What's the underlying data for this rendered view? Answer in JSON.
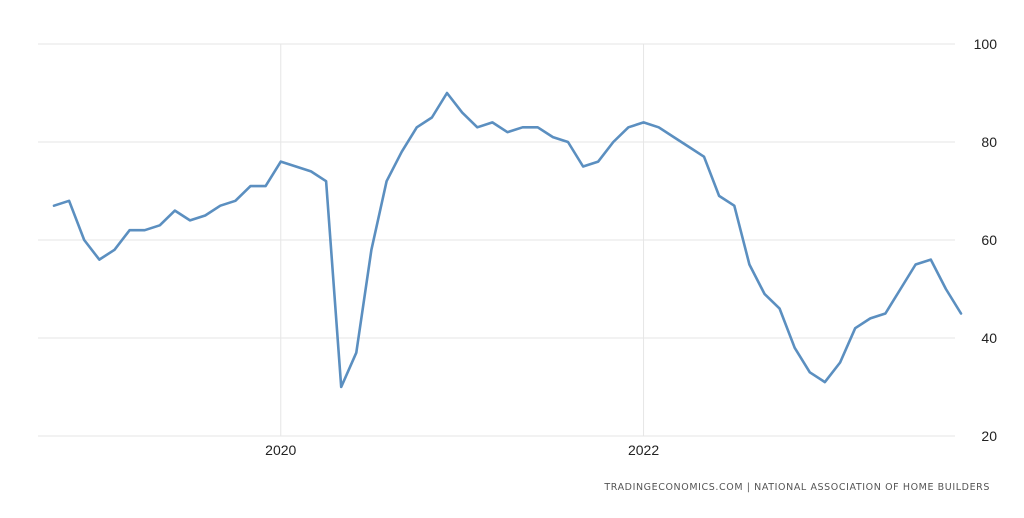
{
  "source_text": "TRADINGECONOMICS.COM | NATIONAL ASSOCIATION OF HOME BUILDERS",
  "colors": {
    "series": "#5b8fc0",
    "grid": "#e6e6e6",
    "text": "#222222"
  },
  "chart_data": {
    "type": "line",
    "title": "",
    "xlabel": "",
    "ylabel": "",
    "ylim": [
      20,
      100
    ],
    "yticks": [
      "20",
      "40",
      "60",
      "80",
      "100"
    ],
    "xticks": [
      "2020",
      "2022"
    ],
    "grid": true,
    "x_start": "2018-10",
    "x_end": "2023-10",
    "series": [
      {
        "values": [
          67,
          68,
          60,
          56,
          58,
          62,
          62,
          63,
          66,
          64,
          65,
          67,
          68,
          71,
          71,
          76,
          75,
          74,
          72,
          30,
          37,
          58,
          72,
          78,
          83,
          85,
          90,
          86,
          83,
          84,
          82,
          83,
          83,
          81,
          80,
          75,
          76,
          80,
          83,
          84,
          83,
          81,
          79,
          77,
          69,
          67,
          55,
          49,
          46,
          38,
          33,
          31,
          35,
          42,
          44,
          45,
          50,
          55,
          56,
          50,
          45
        ]
      }
    ]
  }
}
